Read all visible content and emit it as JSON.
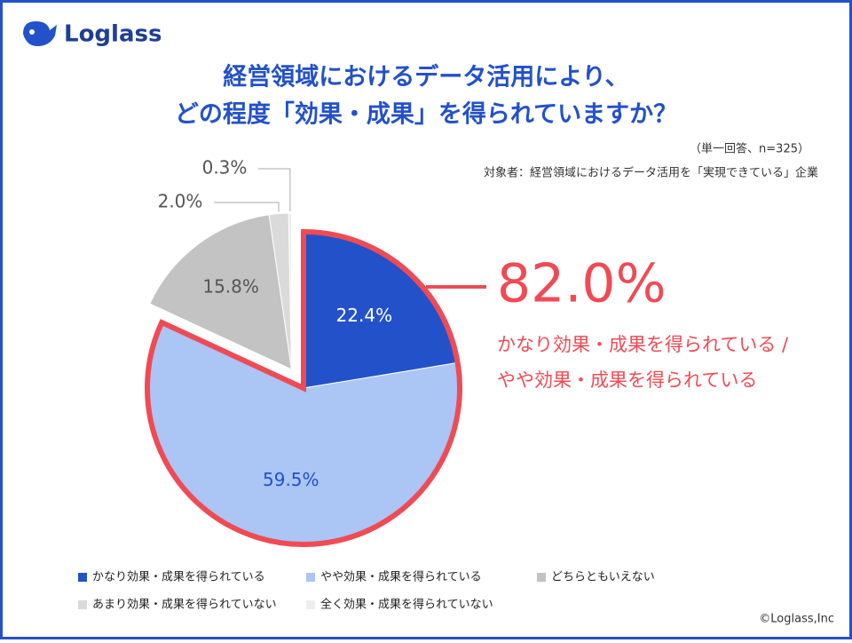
{
  "logo": "Loglass",
  "chart_data": {
    "type": "pie",
    "title": [
      "経営領域におけるデータ活用により、",
      "どの程度「効果・成果」を得られていますか？"
    ],
    "subtitle": "（単一回答、n=325）",
    "note": "対象者：経営領域におけるデータ活用を「実現できている」企業",
    "categories": [
      "かなり効果・成果を得られている",
      "やや効果・成果を得られている",
      "どちらともいえない",
      "あまり効果・成果を得られていない",
      "全く効果・成果を得られていない"
    ],
    "values": [
      22.4,
      59.5,
      15.8,
      2.0,
      0.3
    ],
    "value_labels": [
      "22.4%",
      "59.5%",
      "15.8%",
      "2.0%",
      "0.3%"
    ],
    "colors": [
      "#2351c9",
      "#abc5f4",
      "#c3c3c3",
      "#dadada",
      "#eeeeee"
    ],
    "legend": "bottom",
    "highlight": {
      "label": "82.0%",
      "text": [
        "かなり効果・成果を得られている /",
        "やや効果・成果を得られている"
      ]
    }
  },
  "copyright": "©Loglass,Inc"
}
